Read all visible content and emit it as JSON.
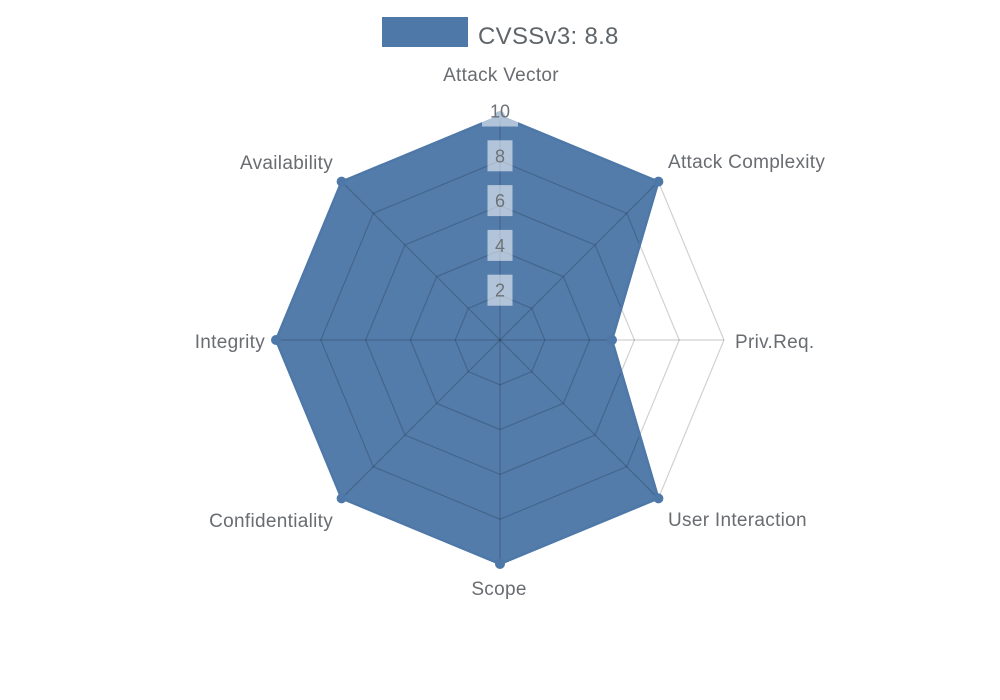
{
  "chart_data": {
    "type": "radar",
    "legend": {
      "label": "CVSSv3: 8.8",
      "color": "#4d78a8"
    },
    "score": 8.8,
    "axes": [
      {
        "label": "Attack Vector",
        "value": 10
      },
      {
        "label": "Attack Complexity",
        "value": 10
      },
      {
        "label": "Priv.Req.",
        "value": 5
      },
      {
        "label": "User Interaction",
        "value": 10
      },
      {
        "label": "Scope",
        "value": 10
      },
      {
        "label": "Confidentiality",
        "value": 10
      },
      {
        "label": "Integrity",
        "value": 10
      },
      {
        "label": "Availability",
        "value": 10
      }
    ],
    "scale": {
      "min": 0,
      "max": 10,
      "ticks": [
        2,
        4,
        6,
        8,
        10
      ]
    },
    "layout_hints": {
      "start_axis": "top",
      "direction": "clockwise",
      "grid_shape": "polygon",
      "rings": 5,
      "legend_position": "top-center",
      "grid_visible": true
    },
    "colors": {
      "series_fill": "#4d78a8",
      "series_stroke": "#4d78a8",
      "grid_line": "rgba(0,0,0,0.18)",
      "axis_label": "#696c70",
      "tick_label": "#6e7276",
      "tick_box": "rgba(255,255,255,0.55)",
      "legend_text": "#5f6569",
      "background": "#ffffff"
    }
  }
}
